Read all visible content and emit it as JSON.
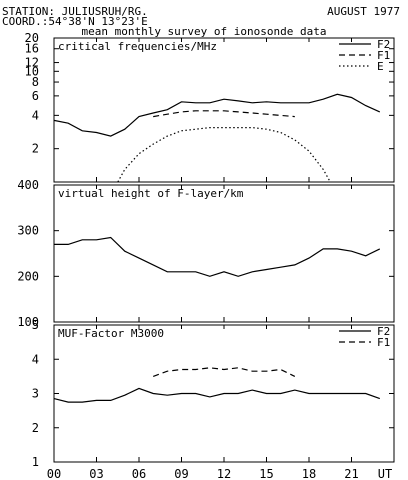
{
  "header": {
    "station": "STATION: JULIUSRUH/RG.",
    "coord": "COORD.:54°38'N 13°23'E",
    "month": "AUGUST 1977",
    "subtitle": "mean monthly survey of ionosonde data"
  },
  "x_axis": {
    "ticks": [
      0,
      3,
      6,
      9,
      12,
      15,
      18,
      21
    ],
    "tick_labels": [
      "00",
      "03",
      "06",
      "09",
      "12",
      "15",
      "18",
      "21"
    ],
    "end_label": "UT",
    "range": [
      0,
      24
    ]
  },
  "colors": {
    "ink": "#000000",
    "background": "#ffffff"
  },
  "chart_data": [
    {
      "type": "line",
      "title": "critical frequencies/MHz",
      "yscale": "log",
      "ylim": [
        1,
        20
      ],
      "yticks": [
        2,
        4,
        6,
        8,
        10,
        12,
        16,
        20
      ],
      "ytick_labels": [
        "2",
        "4",
        "6",
        "8",
        "10",
        "12",
        "16",
        "20"
      ],
      "legend": "top-right",
      "series": [
        {
          "name": "F2",
          "style": "solid",
          "x": [
            0,
            1,
            2,
            3,
            4,
            5,
            6,
            7,
            8,
            9,
            10,
            11,
            12,
            13,
            14,
            15,
            16,
            17,
            18,
            19,
            20,
            21,
            22,
            23
          ],
          "values": [
            3.6,
            3.4,
            2.9,
            2.8,
            2.6,
            3.0,
            3.9,
            4.2,
            4.5,
            5.3,
            5.2,
            5.2,
            5.6,
            5.4,
            5.2,
            5.3,
            5.2,
            5.2,
            5.2,
            5.6,
            6.2,
            5.8,
            4.9,
            4.3
          ]
        },
        {
          "name": "F1",
          "style": "dashed",
          "x": [
            7,
            8,
            9,
            10,
            11,
            12,
            13,
            14,
            15,
            16,
            17
          ],
          "values": [
            3.9,
            4.1,
            4.3,
            4.4,
            4.4,
            4.4,
            4.3,
            4.2,
            4.1,
            4.0,
            3.9
          ]
        },
        {
          "name": "E",
          "style": "dotted",
          "x": [
            4.5,
            5,
            6,
            7,
            8,
            9,
            10,
            11,
            12,
            13,
            14,
            15,
            16,
            17,
            18,
            19,
            19.5
          ],
          "values": [
            1.0,
            1.3,
            1.8,
            2.2,
            2.6,
            2.9,
            3.0,
            3.1,
            3.1,
            3.1,
            3.1,
            3.0,
            2.8,
            2.4,
            1.9,
            1.3,
            1.0
          ]
        }
      ]
    },
    {
      "type": "line",
      "title": "virtual height of F-layer/km",
      "ylim": [
        100,
        400
      ],
      "yticks": [
        100,
        200,
        300,
        400
      ],
      "ytick_labels": [
        "100",
        "200",
        "300",
        "400"
      ],
      "series": [
        {
          "name": "",
          "style": "solid",
          "x": [
            0,
            1,
            2,
            3,
            4,
            5,
            6,
            7,
            8,
            9,
            10,
            11,
            12,
            13,
            14,
            15,
            16,
            17,
            18,
            19,
            20,
            21,
            22,
            23
          ],
          "values": [
            270,
            270,
            280,
            280,
            285,
            255,
            240,
            225,
            210,
            210,
            210,
            200,
            210,
            200,
            210,
            215,
            220,
            225,
            240,
            260,
            260,
            255,
            245,
            260
          ]
        }
      ]
    },
    {
      "type": "line",
      "title": "MUF-Factor M3000",
      "ylim": [
        1,
        5
      ],
      "yticks": [
        1,
        2,
        3,
        4,
        5
      ],
      "ytick_labels": [
        "1",
        "2",
        "3",
        "4",
        "5"
      ],
      "legend": "top-right",
      "series": [
        {
          "name": "F2",
          "style": "solid",
          "x": [
            0,
            1,
            2,
            3,
            4,
            5,
            6,
            7,
            8,
            9,
            10,
            11,
            12,
            13,
            14,
            15,
            16,
            17,
            18,
            19,
            20,
            21,
            22,
            23
          ],
          "values": [
            2.85,
            2.75,
            2.75,
            2.8,
            2.8,
            2.95,
            3.15,
            3.0,
            2.95,
            3.0,
            3.0,
            2.9,
            3.0,
            3.0,
            3.1,
            3.0,
            3.0,
            3.1,
            3.0,
            3.0,
            3.0,
            3.0,
            3.0,
            2.85
          ]
        },
        {
          "name": "F1",
          "style": "dashed",
          "x": [
            7,
            8,
            9,
            10,
            11,
            12,
            13,
            14,
            15,
            16,
            17
          ],
          "values": [
            3.5,
            3.65,
            3.7,
            3.7,
            3.75,
            3.7,
            3.75,
            3.65,
            3.65,
            3.7,
            3.5
          ]
        }
      ]
    }
  ]
}
